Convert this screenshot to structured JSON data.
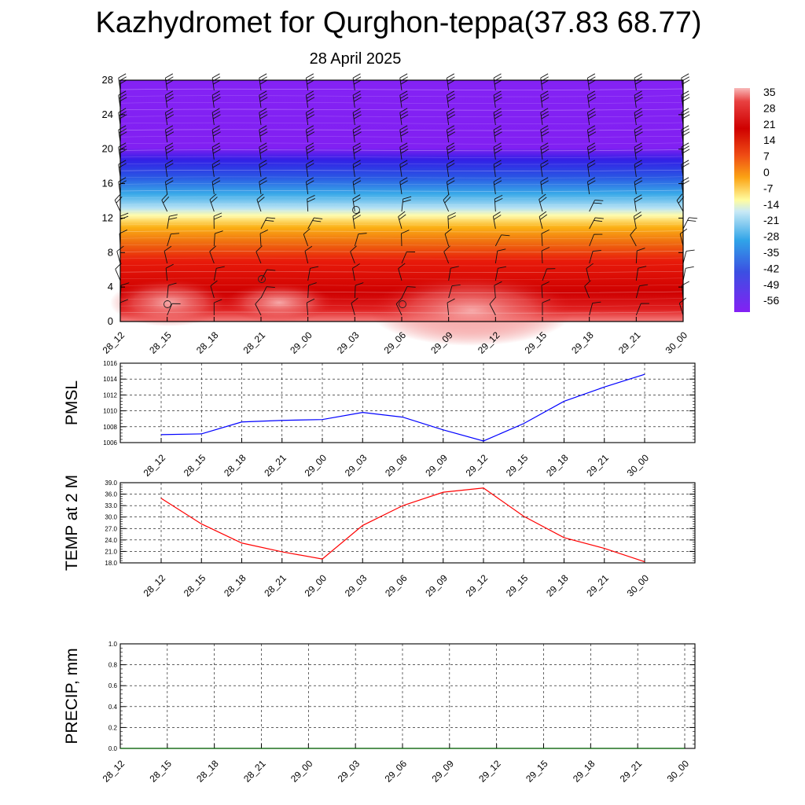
{
  "header": {
    "title": "Kazhydromet for Qurghon-teppa(37.83 68.77)",
    "subtitle": "28 April 2025"
  },
  "colors": {
    "pmsl_line": "#0000ff",
    "temp_line": "#ff0000",
    "precip_line": "#006400"
  },
  "chart_data": [
    {
      "type": "heatmap",
      "title": "Kazhydromet for Qurghon-teppa(37.83 68.77)",
      "subtitle": "28 April 2025",
      "x_tick_labels": [
        "28_12",
        "28_15",
        "28_18",
        "28_21",
        "29_00",
        "29_03",
        "29_06",
        "29_09",
        "29_12",
        "29_15",
        "29_18",
        "29_21",
        "30_00"
      ],
      "y_tick_labels": [
        "0",
        "4",
        "8",
        "12",
        "16",
        "20",
        "24",
        "28"
      ],
      "ylim": [
        0,
        28
      ],
      "colorbar_labels": [
        "35",
        "28",
        "21",
        "14",
        "7",
        "0",
        "-7",
        "-14",
        "-21",
        "-28",
        "-35",
        "-42",
        "-49",
        "-56"
      ],
      "colorbar_range": [
        -60,
        38
      ],
      "colorbar_position": "right",
      "has_wind_barbs": true
    },
    {
      "type": "line",
      "ylabel": "PMSL",
      "x_tick_labels": [
        "28_12",
        "28_15",
        "28_18",
        "28_21",
        "29_00",
        "29_03",
        "29_06",
        "29_09",
        "29_12",
        "29_15",
        "29_18",
        "29_21",
        "30_00"
      ],
      "y_tick_labels": [
        "1006",
        "1008",
        "1010",
        "1012",
        "1014",
        "1016"
      ],
      "ylim": [
        1006,
        1016
      ],
      "grid": true,
      "series": [
        {
          "values": [
            1007.0,
            1007.1,
            1008.6,
            1008.8,
            1008.9,
            1009.8,
            1009.2,
            1007.6,
            1006.2,
            1008.4,
            1011.2,
            1013.0,
            1014.6
          ]
        }
      ]
    },
    {
      "type": "line",
      "ylabel": "TEMP at 2 M",
      "x_tick_labels": [
        "28_12",
        "28_15",
        "28_18",
        "28_21",
        "29_00",
        "29_03",
        "29_06",
        "29_09",
        "29_12",
        "29_15",
        "29_18",
        "29_21",
        "30_00"
      ],
      "y_tick_labels": [
        "18.0",
        "21.0",
        "24.0",
        "27.0",
        "30.0",
        "33.0",
        "36.0",
        "39.0"
      ],
      "ylim": [
        18.0,
        39.0
      ],
      "grid": true,
      "series": [
        {
          "values": [
            34.9,
            28.2,
            23.2,
            20.9,
            19.0,
            27.8,
            33.0,
            36.5,
            37.6,
            30.2,
            24.6,
            21.8,
            18.3
          ]
        }
      ]
    },
    {
      "type": "line",
      "ylabel": "PRECIP, mm",
      "x_tick_labels": [
        "28_12",
        "28_15",
        "28_18",
        "28_21",
        "29_00",
        "29_03",
        "29_06",
        "29_09",
        "29_12",
        "29_15",
        "29_18",
        "29_21",
        "30_00"
      ],
      "y_tick_labels": [
        "0.0",
        "0.2",
        "0.4",
        "0.6",
        "0.8",
        "1.0"
      ],
      "ylim": [
        0.0,
        1.0
      ],
      "grid": true,
      "series": [
        {
          "values": [
            0,
            0,
            0,
            0,
            0,
            0,
            0,
            0,
            0,
            0,
            0,
            0,
            0
          ]
        }
      ]
    }
  ]
}
